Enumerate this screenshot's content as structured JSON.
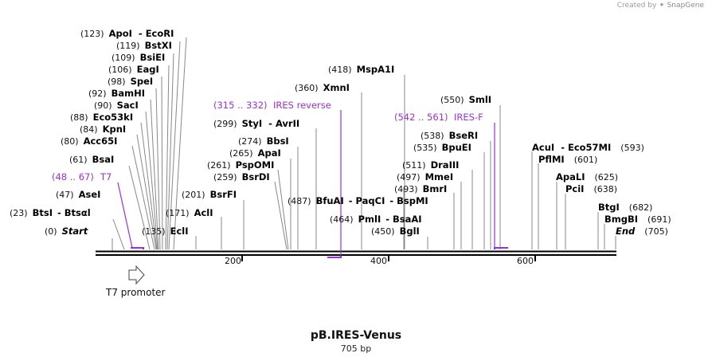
{
  "credit": {
    "prefix": "Created by",
    "brand": "SnapGene"
  },
  "map": {
    "name": "pB.IRES-Venus",
    "length_label": "705 bp",
    "length": 705
  },
  "colors": {
    "feature": "#9b30d9",
    "line": "#888888",
    "backbone": "#000000"
  },
  "ticks": [
    "200",
    "400",
    "600"
  ],
  "sites": [
    {
      "pos": "(0)",
      "names": [
        "Start"
      ],
      "italic": true
    },
    {
      "pos": "(23)",
      "names": [
        "BtsI",
        "Btsαl"
      ]
    },
    {
      "pos": "(47)",
      "names": [
        "AseI"
      ]
    },
    {
      "pos": "(61)",
      "names": [
        "BsaI"
      ]
    },
    {
      "pos": "(80)",
      "names": [
        "Acc65I"
      ]
    },
    {
      "pos": "(84)",
      "names": [
        "KpnI"
      ]
    },
    {
      "pos": "(88)",
      "names": [
        "Eco53kI"
      ]
    },
    {
      "pos": "(90)",
      "names": [
        "SacI"
      ]
    },
    {
      "pos": "(92)",
      "names": [
        "BamHI"
      ]
    },
    {
      "pos": "(98)",
      "names": [
        "SpeI"
      ]
    },
    {
      "pos": "(106)",
      "names": [
        "EagI"
      ]
    },
    {
      "pos": "(109)",
      "names": [
        "BsiEI"
      ]
    },
    {
      "pos": "(119)",
      "names": [
        "BstXI"
      ]
    },
    {
      "pos": "(123)",
      "names": [
        "ApoI",
        "EcoRI"
      ]
    },
    {
      "pos": "(135)",
      "names": [
        "EclI"
      ]
    },
    {
      "pos": "(171)",
      "names": [
        "AclI"
      ]
    },
    {
      "pos": "(201)",
      "names": [
        "BsrFI"
      ]
    },
    {
      "pos": "(259)",
      "names": [
        "BsrDI"
      ]
    },
    {
      "pos": "(261)",
      "names": [
        "PspOMI"
      ]
    },
    {
      "pos": "(265)",
      "names": [
        "ApaI"
      ]
    },
    {
      "pos": "(274)",
      "names": [
        "BbsI"
      ]
    },
    {
      "pos": "(299)",
      "names": [
        "StyI",
        "AvrII"
      ]
    },
    {
      "pos": "(360)",
      "names": [
        "XmnI"
      ]
    },
    {
      "pos": "(418)",
      "names": [
        "MspA1I"
      ]
    },
    {
      "pos": "(464)",
      "names": [
        "PmlI",
        "BsaAI"
      ]
    },
    {
      "pos": "(450)",
      "names": [
        "BglI"
      ]
    },
    {
      "pos": "(487)",
      "names": [
        "BfuAI",
        "PaqCI",
        "BspMI"
      ]
    },
    {
      "pos": "(493)",
      "names": [
        "BmrI"
      ]
    },
    {
      "pos": "(497)",
      "names": [
        "MmeI"
      ]
    },
    {
      "pos": "(511)",
      "names": [
        "DraIII"
      ]
    },
    {
      "pos": "(535)",
      "names": [
        "BpuEI"
      ]
    },
    {
      "pos": "(538)",
      "names": [
        "BseRI"
      ]
    },
    {
      "pos": "(550)",
      "names": [
        "SmlI"
      ]
    },
    {
      "pos": "(593)",
      "names": [
        "AcuI",
        "Eco57MI"
      ]
    },
    {
      "pos": "(601)",
      "names": [
        "PflMI"
      ]
    },
    {
      "pos": "(625)",
      "names": [
        "ApaLI"
      ]
    },
    {
      "pos": "(638)",
      "names": [
        "PciI"
      ]
    },
    {
      "pos": "(682)",
      "names": [
        "BtgI"
      ]
    },
    {
      "pos": "(691)",
      "names": [
        "BmgBI"
      ]
    },
    {
      "pos": "(705)",
      "names": [
        "End"
      ],
      "italic": true
    }
  ],
  "features": [
    {
      "range": "(48 .. 67)",
      "name": "T7",
      "bp_start": 48,
      "bp_end": 67
    },
    {
      "range": "(315 .. 332)",
      "name": "IRES reverse",
      "bp_start": 315,
      "bp_end": 332
    },
    {
      "range": "(542 .. 561)",
      "name": "IRES-F",
      "bp_start": 542,
      "bp_end": 561
    }
  ],
  "promoter": {
    "name": "T7 promoter"
  }
}
